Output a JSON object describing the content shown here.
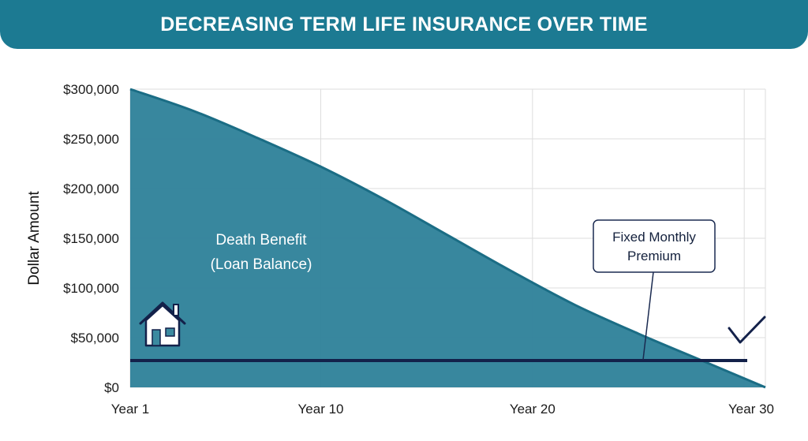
{
  "title": "DECREASING TERM LIFE INSURANCE OVER TIME",
  "colors": {
    "banner": "#1c7a92",
    "area_fill": "#2d8199",
    "area_edge": "#1b6d85",
    "premium_line": "#13214a",
    "grid": "#dddddd",
    "callout_border": "#1a2a50"
  },
  "icons": [
    "house-icon",
    "checkmark-icon"
  ],
  "chart_data": {
    "type": "area",
    "title": "DECREASING TERM LIFE INSURANCE OVER TIME",
    "xlabel": "",
    "ylabel": "Dollar Amount",
    "x_ticks": [
      {
        "x": 1,
        "label": "Year 1"
      },
      {
        "x": 10,
        "label": "Year 10"
      },
      {
        "x": 20,
        "label": "Year 20"
      },
      {
        "x": 30,
        "label": "Year 30"
      }
    ],
    "xlim": [
      1,
      31
    ],
    "y_ticks": [
      0,
      50000,
      100000,
      150000,
      200000,
      250000,
      300000
    ],
    "y_tick_labels": [
      "$0",
      "$50,000",
      "$100,000",
      "$150,000",
      "$200,000",
      "$250,000",
      "$300,000"
    ],
    "ylim": [
      0,
      300000
    ],
    "grid": true,
    "series": [
      {
        "name": "Death Benefit (Loan Balance)",
        "label_lines": [
          "Death Benefit",
          "(Loan Balance)"
        ],
        "type": "area",
        "x": [
          1,
          4,
          7,
          10,
          13,
          16,
          19,
          22,
          25,
          28,
          31
        ],
        "y": [
          300000,
          278000,
          251000,
          222000,
          189000,
          153000,
          117000,
          83000,
          54000,
          27000,
          0
        ]
      },
      {
        "name": "Fixed Monthly Premium",
        "label_lines": [
          "Fixed Monthly",
          "Premium"
        ],
        "type": "line",
        "x": [
          1,
          31
        ],
        "y": [
          27000,
          27000
        ]
      }
    ]
  }
}
